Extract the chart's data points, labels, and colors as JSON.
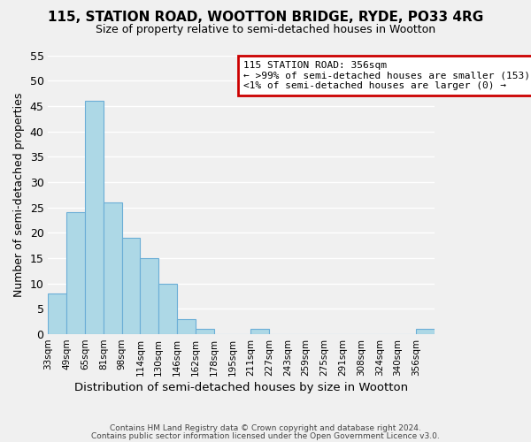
{
  "title": "115, STATION ROAD, WOOTTON BRIDGE, RYDE, PO33 4RG",
  "subtitle": "Size of property relative to semi-detached houses in Wootton",
  "xlabel": "Distribution of semi-detached houses by size in Wootton",
  "ylabel": "Number of semi-detached properties",
  "bin_labels": [
    "33sqm",
    "49sqm",
    "65sqm",
    "81sqm",
    "98sqm",
    "114sqm",
    "130sqm",
    "146sqm",
    "162sqm",
    "178sqm",
    "195sqm",
    "211sqm",
    "227sqm",
    "243sqm",
    "259sqm",
    "275sqm",
    "291sqm",
    "308sqm",
    "324sqm",
    "340sqm",
    "356sqm"
  ],
  "bar_values": [
    8,
    24,
    46,
    26,
    19,
    15,
    10,
    3,
    1,
    0,
    0,
    1,
    0,
    0,
    0,
    0,
    0,
    0,
    0,
    0,
    1
  ],
  "bar_color": "#add8e6",
  "bar_edge_color": "#6baed6",
  "ylim": [
    0,
    55
  ],
  "yticks": [
    0,
    5,
    10,
    15,
    20,
    25,
    30,
    35,
    40,
    45,
    50,
    55
  ],
  "legend_title": "115 STATION ROAD: 356sqm",
  "legend_line1": "← >99% of semi-detached houses are smaller (153)",
  "legend_line2": "<1% of semi-detached houses are larger (0) →",
  "legend_border_color": "#cc0000",
  "footer_line1": "Contains HM Land Registry data © Crown copyright and database right 2024.",
  "footer_line2": "Contains public sector information licensed under the Open Government Licence v3.0.",
  "background_color": "#f0f0f0",
  "grid_color": "#ffffff"
}
